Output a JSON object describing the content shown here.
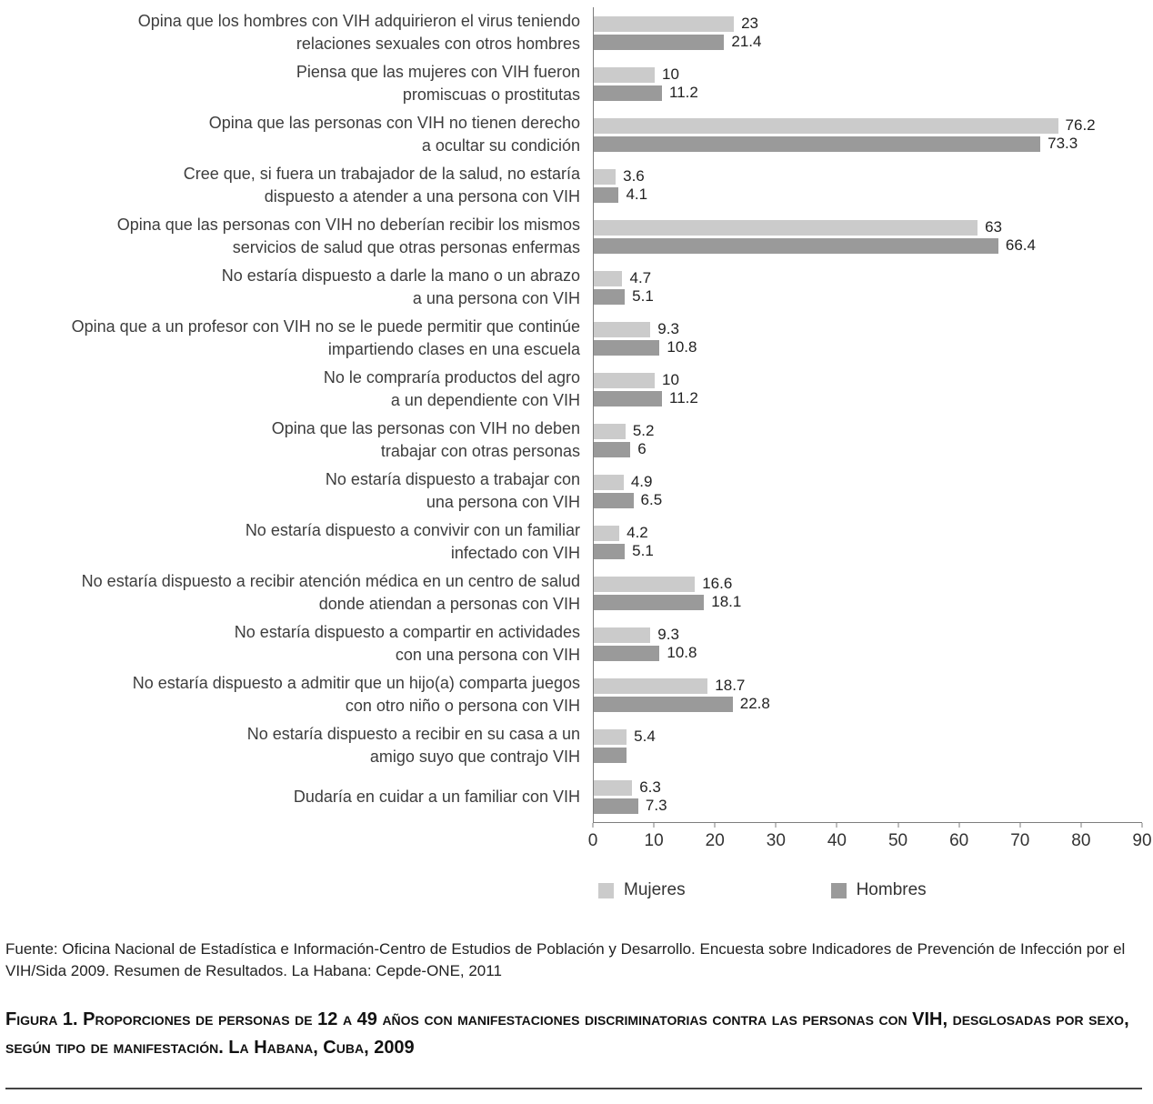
{
  "chart_data": {
    "type": "bar",
    "orientation": "horizontal",
    "title": "",
    "xlabel": "",
    "ylabel": "",
    "xlim": [
      0,
      90
    ],
    "x_ticks": [
      0,
      10,
      20,
      30,
      40,
      50,
      60,
      70,
      80,
      90
    ],
    "grid": false,
    "legend_position": "bottom",
    "series_names": [
      "Mujeres",
      "Hombres"
    ],
    "colors": {
      "mujeres": "#cbcbcb",
      "hombres": "#9a9a9a"
    },
    "rows": [
      {
        "label_lines": [
          "Opina que los hombres con VIH adquirieron el virus teniendo",
          "relaciones sexuales con otros hombres"
        ],
        "mujeres": 23,
        "hombres": 21.4,
        "mujeres_label": "23",
        "hombres_label": "21.4"
      },
      {
        "label_lines": [
          "Piensa que las mujeres con VIH fueron",
          "promiscuas o prostitutas"
        ],
        "mujeres": 10,
        "hombres": 11.2,
        "mujeres_label": "10",
        "hombres_label": "11.2"
      },
      {
        "label_lines": [
          "Opina que las personas con VIH no tienen derecho",
          "a ocultar su condición"
        ],
        "mujeres": 76.2,
        "hombres": 73.3,
        "mujeres_label": "76.2",
        "hombres_label": "73.3"
      },
      {
        "label_lines": [
          "Cree que, si fuera un trabajador de la salud, no estaría",
          "dispuesto a atender a una persona con VIH"
        ],
        "mujeres": 3.6,
        "hombres": 4.1,
        "mujeres_label": "3.6",
        "hombres_label": "4.1"
      },
      {
        "label_lines": [
          "Opina que las personas con VIH no deberían recibir los mismos",
          "servicios de salud que otras personas enfermas"
        ],
        "mujeres": 63,
        "hombres": 66.4,
        "mujeres_label": "63",
        "hombres_label": "66.4"
      },
      {
        "label_lines": [
          "No estaría dispuesto a darle la mano o un abrazo",
          "a una persona con VIH"
        ],
        "mujeres": 4.7,
        "hombres": 5.1,
        "mujeres_label": "4.7",
        "hombres_label": "5.1"
      },
      {
        "label_lines": [
          "Opina que a un profesor con VIH no se le puede permitir que continúe",
          "impartiendo clases en una escuela"
        ],
        "mujeres": 9.3,
        "hombres": 10.8,
        "mujeres_label": "9.3",
        "hombres_label": "10.8"
      },
      {
        "label_lines": [
          "No le compraría productos del agro",
          "a un dependiente con VIH"
        ],
        "mujeres": 10,
        "hombres": 11.2,
        "mujeres_label": "10",
        "hombres_label": "11.2"
      },
      {
        "label_lines": [
          "Opina que las personas con VIH no deben",
          "trabajar con otras personas"
        ],
        "mujeres": 5.2,
        "hombres": 6,
        "mujeres_label": "5.2",
        "hombres_label": "6"
      },
      {
        "label_lines": [
          "No estaría dispuesto a trabajar con",
          "una persona con VIH"
        ],
        "mujeres": 4.9,
        "hombres": 6.5,
        "mujeres_label": "4.9",
        "hombres_label": "6.5"
      },
      {
        "label_lines": [
          "No estaría dispuesto a convivir con un familiar",
          "infectado con VIH"
        ],
        "mujeres": 4.2,
        "hombres": 5.1,
        "mujeres_label": "4.2",
        "hombres_label": "5.1"
      },
      {
        "label_lines": [
          "No estaría dispuesto a recibir atención médica en un centro de salud",
          "donde atiendan a personas con VIH"
        ],
        "mujeres": 16.6,
        "hombres": 18.1,
        "mujeres_label": "16.6",
        "hombres_label": "18.1"
      },
      {
        "label_lines": [
          "No estaría dispuesto a compartir en actividades",
          "con una persona con VIH"
        ],
        "mujeres": 9.3,
        "hombres": 10.8,
        "mujeres_label": "9.3",
        "hombres_label": "10.8"
      },
      {
        "label_lines": [
          "No estaría dispuesto a admitir que un hijo(a) comparta juegos",
          "con otro niño o persona con VIH"
        ],
        "mujeres": 18.7,
        "hombres": 22.8,
        "mujeres_label": "18.7",
        "hombres_label": "22.8"
      },
      {
        "label_lines": [
          "No estaría dispuesto a recibir en su casa a un",
          "amigo suyo que contrajo VIH"
        ],
        "mujeres": 5.4,
        "hombres": 5.3,
        "mujeres_label": "5.4",
        "hombres_label": ""
      },
      {
        "label_lines": [
          "Dudaría en cuidar a un familiar con VIH"
        ],
        "mujeres": 6.3,
        "hombres": 7.3,
        "mujeres_label": "6.3",
        "hombres_label": "7.3"
      }
    ]
  },
  "legend": {
    "mujeres_label": "Mujeres",
    "hombres_label": "Hombres"
  },
  "source": "Fuente: Oficina Nacional de Estadística e Información-Centro de Estudios de Población y Desarrollo. Encuesta sobre Indicadores de Prevención de Infección por el VIH/Sida 2009. Resumen de Resultados. La Habana: Cepde-ONE, 2011",
  "caption": "Figura 1. Proporciones de personas de 12 a 49 años con manifestaciones discriminatorias contra las personas con VIH, desglosadas por sexo, según tipo de manifestación. La Habana, Cuba, 2009"
}
